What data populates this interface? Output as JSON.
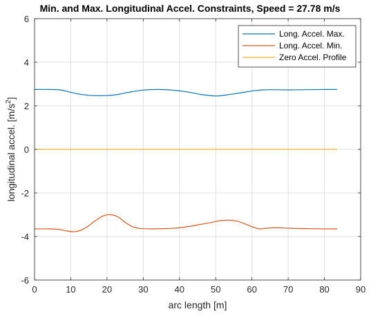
{
  "chart_data": {
    "type": "line",
    "title": "Min. and Max. Longitudinal Accel. Constraints, Speed = 27.78 m/s",
    "xlabel": "arc length [m]",
    "ylabel_main": "longitudinal accel. [m/s",
    "ylabel_sup": "2",
    "ylabel_close": "]",
    "xlim": [
      0,
      90
    ],
    "ylim": [
      -6,
      6
    ],
    "xticks": [
      0,
      10,
      20,
      30,
      40,
      50,
      60,
      70,
      80,
      90
    ],
    "yticks": [
      -6,
      -4,
      -2,
      0,
      2,
      4,
      6
    ],
    "grid": true,
    "legend_position": "top-right",
    "series": [
      {
        "name": "Long. Accel. Max.",
        "color": "#0072BD",
        "x": [
          0,
          4,
          7,
          9,
          11,
          13,
          16,
          20,
          23,
          26,
          30,
          34,
          38,
          42,
          46,
          50,
          53,
          57,
          61,
          65,
          70,
          75,
          80,
          83.5
        ],
        "y": [
          2.75,
          2.75,
          2.73,
          2.66,
          2.58,
          2.52,
          2.47,
          2.47,
          2.52,
          2.62,
          2.72,
          2.75,
          2.72,
          2.64,
          2.52,
          2.45,
          2.5,
          2.6,
          2.7,
          2.74,
          2.73,
          2.74,
          2.75,
          2.75
        ]
      },
      {
        "name": "Long. Accel. Min.",
        "color": "#D95319",
        "x": [
          0,
          4,
          7,
          9,
          11,
          13,
          15,
          17,
          19,
          21,
          23,
          25,
          27,
          29,
          32,
          36,
          40,
          44,
          48,
          51,
          53.5,
          56,
          58,
          60,
          62,
          64,
          67,
          70,
          75,
          80,
          83.5
        ],
        "y": [
          -3.65,
          -3.65,
          -3.68,
          -3.75,
          -3.78,
          -3.7,
          -3.5,
          -3.25,
          -3.05,
          -3.0,
          -3.1,
          -3.35,
          -3.55,
          -3.63,
          -3.65,
          -3.64,
          -3.6,
          -3.5,
          -3.38,
          -3.28,
          -3.25,
          -3.3,
          -3.42,
          -3.55,
          -3.65,
          -3.62,
          -3.6,
          -3.62,
          -3.64,
          -3.65,
          -3.65
        ]
      },
      {
        "name": "Zero Accel. Profile",
        "color": "#EDB120",
        "x": [
          0,
          83.5
        ],
        "y": [
          0,
          0
        ]
      }
    ]
  }
}
